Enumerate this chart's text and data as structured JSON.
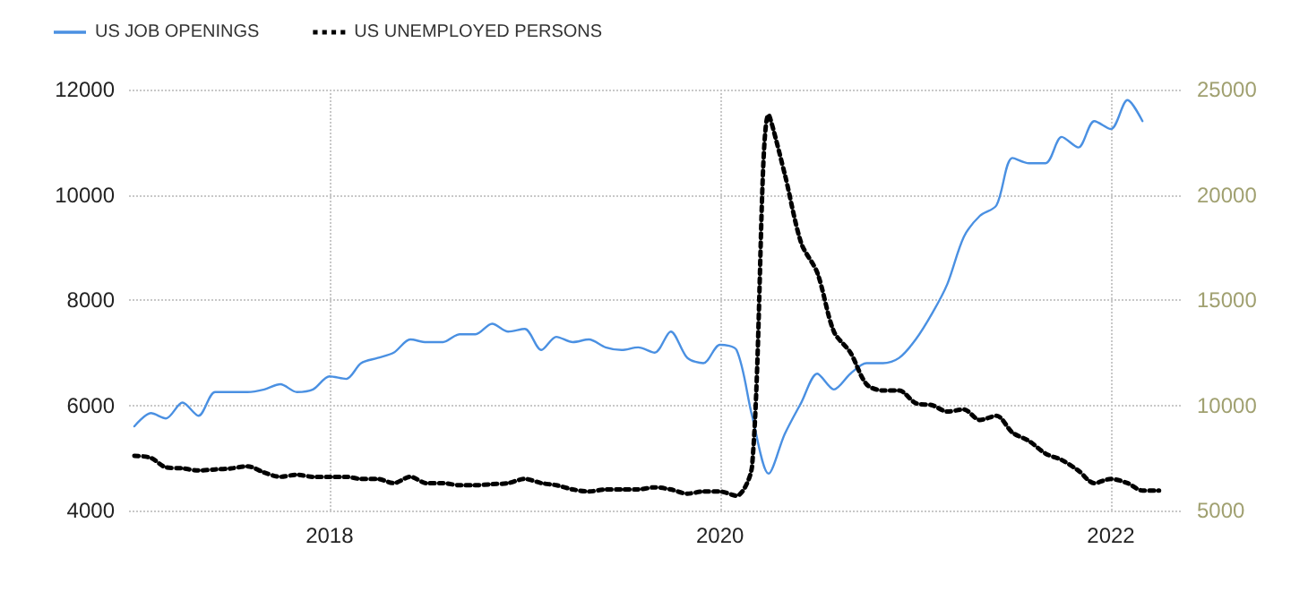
{
  "chart_data": {
    "type": "line",
    "x": [
      "2017-01",
      "2017-02",
      "2017-03",
      "2017-04",
      "2017-05",
      "2017-06",
      "2017-07",
      "2017-08",
      "2017-09",
      "2017-10",
      "2017-11",
      "2017-12",
      "2018-01",
      "2018-02",
      "2018-03",
      "2018-04",
      "2018-05",
      "2018-06",
      "2018-07",
      "2018-08",
      "2018-09",
      "2018-10",
      "2018-11",
      "2018-12",
      "2019-01",
      "2019-02",
      "2019-03",
      "2019-04",
      "2019-05",
      "2019-06",
      "2019-07",
      "2019-08",
      "2019-09",
      "2019-10",
      "2019-11",
      "2019-12",
      "2020-01",
      "2020-02",
      "2020-03",
      "2020-04",
      "2020-05",
      "2020-06",
      "2020-07",
      "2020-08",
      "2020-09",
      "2020-10",
      "2020-11",
      "2020-12",
      "2021-01",
      "2021-02",
      "2021-03",
      "2021-04",
      "2021-05",
      "2021-06",
      "2021-07",
      "2021-08",
      "2021-09",
      "2021-10",
      "2021-11",
      "2021-12",
      "2022-01",
      "2022-02",
      "2022-03",
      "2022-04"
    ],
    "series": [
      {
        "name": "US JOB OPENINGS",
        "color": "#4a90e2",
        "line_style": "solid",
        "values": [
          5600,
          5850,
          5750,
          6050,
          5800,
          6250,
          6250,
          6250,
          6300,
          6400,
          6250,
          6300,
          6550,
          6500,
          6800,
          6900,
          7000,
          7250,
          7200,
          7200,
          7350,
          7350,
          7550,
          7400,
          7450,
          7050,
          7300,
          7200,
          7250,
          7100,
          7050,
          7100,
          7000,
          7400,
          6900,
          6800,
          7150,
          7050,
          5800,
          4700,
          5450,
          6050,
          6600,
          6300,
          6600,
          6800,
          6800,
          6900,
          7250,
          7750,
          8300,
          9200,
          9600,
          9800,
          10700,
          10600,
          10600,
          11100,
          10900,
          11400,
          11250,
          11800,
          11400,
          null
        ]
      },
      {
        "name": "US UNEMPLOYED PERSONS",
        "color": "#000000",
        "axis": "y2",
        "line_style": "dotted",
        "values": [
          7600,
          7500,
          7050,
          7000,
          6900,
          6950,
          7000,
          7100,
          6800,
          6600,
          6700,
          6600,
          6600,
          6600,
          6500,
          6500,
          6300,
          6600,
          6300,
          6300,
          6200,
          6200,
          6250,
          6300,
          6500,
          6300,
          6200,
          6000,
          5900,
          6000,
          6000,
          6000,
          6100,
          6000,
          5800,
          5900,
          5900,
          5700,
          7100,
          23800,
          21000,
          17700,
          16300,
          13500,
          12500,
          11000,
          10700,
          10700,
          10100,
          10000,
          9700,
          9800,
          9300,
          9500,
          8700,
          8300,
          7700,
          7400,
          6900,
          6300,
          6500,
          6300,
          5950,
          5950
        ]
      }
    ],
    "xlim": [
      "2016-12-22",
      "2022-05-15"
    ],
    "xticks": [
      "2018",
      "2020",
      "2022"
    ],
    "ylim": [
      4000,
      12000
    ],
    "yticks": [
      4000,
      6000,
      8000,
      10000,
      12000
    ],
    "y2lim": [
      5000,
      25000
    ],
    "y2ticks": [
      5000,
      10000,
      15000,
      20000,
      25000
    ],
    "grid": true,
    "legend": "top left",
    "marker": "none"
  }
}
